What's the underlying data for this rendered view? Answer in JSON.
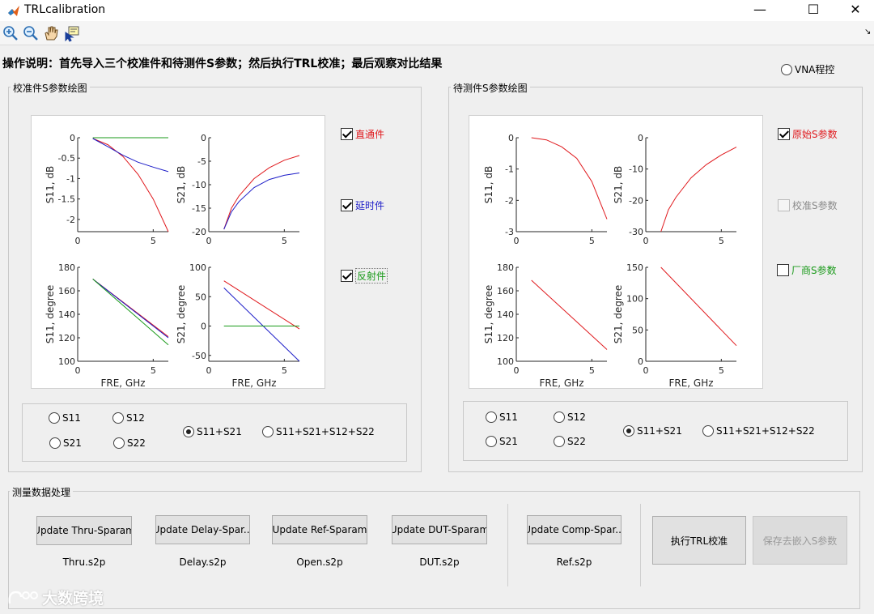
{
  "window": {
    "title": "TRLcalibration",
    "minimize": "—",
    "maximize": "☐",
    "close": "✕"
  },
  "toolbar": {
    "tools": [
      "zoom-in-icon",
      "zoom-out-icon",
      "pan-hand-icon",
      "data-cursor-icon"
    ]
  },
  "instructions": "操作说明：首先导入三个校准件和待测件S参数；然后执行TRL校准；最后观察对比结果",
  "vna": {
    "label": "VNA程控",
    "selected": false
  },
  "left_panel": {
    "title": "校准件S参数绘图",
    "checkboxes": [
      {
        "label": "直通件",
        "checked": true,
        "color": "#e0191d"
      },
      {
        "label": "延时件",
        "checked": true,
        "color": "#1c1cc8"
      },
      {
        "label": "反射件",
        "checked": true,
        "color": "#1a9a1a"
      }
    ],
    "radios": [
      {
        "label": "S11",
        "selected": false
      },
      {
        "label": "S12",
        "selected": false
      },
      {
        "label": "S21",
        "selected": false
      },
      {
        "label": "S22",
        "selected": false
      },
      {
        "label": "S11+S21",
        "selected": true
      },
      {
        "label": "S11+S21+S12+S22",
        "selected": false
      }
    ]
  },
  "right_panel": {
    "title": "待测件S参数绘图",
    "checkboxes": [
      {
        "label": "原始S参数",
        "checked": true,
        "disabled": false,
        "color": "#e0191d"
      },
      {
        "label": "校准S参数",
        "checked": false,
        "disabled": true,
        "color": "#8a8a8a"
      },
      {
        "label": "厂商S参数",
        "checked": false,
        "disabled": false,
        "color": "#1a9a1a"
      }
    ],
    "radios": [
      {
        "label": "S11",
        "selected": false
      },
      {
        "label": "S12",
        "selected": false
      },
      {
        "label": "S21",
        "selected": false
      },
      {
        "label": "S22",
        "selected": false
      },
      {
        "label": "S11+S21",
        "selected": true
      },
      {
        "label": "S11+S21+S12+S22",
        "selected": false
      }
    ]
  },
  "measurement": {
    "title": "测量数据处理",
    "buttons": [
      {
        "label": "Update Thru-Sparam",
        "file": "Thru.s2p"
      },
      {
        "label": "Update Delay-Spar...",
        "file": "Delay.s2p"
      },
      {
        "label": "Update Ref-Sparam",
        "file": "Open.s2p"
      },
      {
        "label": "Update DUT-Sparam",
        "file": "DUT.s2p"
      },
      {
        "label": "Update Comp-Spar...",
        "file": "Ref.s2p"
      }
    ],
    "run_button": "执行TRL校准",
    "save_button": "保存去嵌入S参数"
  },
  "watermark": "大数跨境",
  "chart_data": [
    {
      "type": "line",
      "id": "cal_s11_db",
      "xlabel": "",
      "ylabel": "S11, dB",
      "xlim": [
        0,
        6
      ],
      "ylim": [
        -2.3,
        0
      ],
      "xticks": [
        0,
        5
      ],
      "yticks": [
        0,
        -0.5,
        -1,
        -1.5,
        -2
      ],
      "series": [
        {
          "color": "#e0191d",
          "x": [
            1,
            2,
            3,
            4,
            5,
            6
          ],
          "y": [
            -0.02,
            -0.17,
            -0.46,
            -0.9,
            -1.5,
            -2.3
          ]
        },
        {
          "color": "#1c1cc8",
          "x": [
            1,
            2,
            3,
            4,
            5,
            6
          ],
          "y": [
            -0.02,
            -0.22,
            -0.43,
            -0.6,
            -0.72,
            -0.83
          ]
        },
        {
          "color": "#1a9a1a",
          "x": [
            1,
            6
          ],
          "y": [
            0,
            0
          ]
        }
      ]
    },
    {
      "type": "line",
      "id": "cal_s21_db",
      "xlabel": "",
      "ylabel": "S21, dB",
      "xlim": [
        0,
        6
      ],
      "ylim": [
        -20,
        0
      ],
      "xticks": [
        0,
        5
      ],
      "yticks": [
        0,
        -5,
        -10,
        -15,
        -20
      ],
      "series": [
        {
          "color": "#e0191d",
          "x": [
            1,
            1.5,
            2,
            3,
            4,
            5,
            6
          ],
          "y": [
            -19.5,
            -15,
            -12.4,
            -8.7,
            -6.4,
            -4.8,
            -3.8
          ]
        },
        {
          "color": "#1c1cc8",
          "x": [
            1,
            1.5,
            2,
            3,
            4,
            5,
            6
          ],
          "y": [
            -19.5,
            -15.8,
            -13.6,
            -10.6,
            -8.9,
            -8,
            -7.5
          ]
        }
      ]
    },
    {
      "type": "line",
      "id": "cal_s11_deg",
      "xlabel": "FRE, GHz",
      "ylabel": "S11, degree",
      "xlim": [
        0,
        6
      ],
      "ylim": [
        100,
        180
      ],
      "xticks": [
        0,
        5
      ],
      "yticks": [
        100,
        120,
        140,
        160,
        180
      ],
      "series": [
        {
          "color": "#e0191d",
          "x": [
            1,
            6
          ],
          "y": [
            170,
            121
          ]
        },
        {
          "color": "#1c1cc8",
          "x": [
            1,
            6
          ],
          "y": [
            170,
            120
          ]
        },
        {
          "color": "#1a9a1a",
          "x": [
            1,
            6
          ],
          "y": [
            170,
            114
          ]
        }
      ]
    },
    {
      "type": "line",
      "id": "cal_s21_deg",
      "xlabel": "FRE, GHz",
      "ylabel": "S21, degree",
      "xlim": [
        0,
        6
      ],
      "ylim": [
        -60,
        100
      ],
      "xticks": [
        0,
        5
      ],
      "yticks": [
        100,
        50,
        0,
        -50
      ],
      "series": [
        {
          "color": "#e0191d",
          "x": [
            1,
            6
          ],
          "y": [
            77,
            -5
          ]
        },
        {
          "color": "#1c1cc8",
          "x": [
            1,
            6
          ],
          "y": [
            65,
            -60
          ]
        },
        {
          "color": "#1a9a1a",
          "x": [
            1,
            6
          ],
          "y": [
            0,
            0
          ]
        }
      ]
    },
    {
      "type": "line",
      "id": "dut_s11_db",
      "xlabel": "",
      "ylabel": "S11, dB",
      "xlim": [
        0,
        6
      ],
      "ylim": [
        -3,
        0
      ],
      "xticks": [
        0,
        5
      ],
      "yticks": [
        0,
        -1,
        -2,
        -3
      ],
      "series": [
        {
          "color": "#e0191d",
          "x": [
            1,
            2,
            3,
            4,
            5,
            6
          ],
          "y": [
            0,
            -0.07,
            -0.29,
            -0.66,
            -1.4,
            -2.6
          ]
        }
      ]
    },
    {
      "type": "line",
      "id": "dut_s21_db",
      "xlabel": "",
      "ylabel": "S21, dB",
      "xlim": [
        0,
        6
      ],
      "ylim": [
        -30,
        0
      ],
      "xticks": [
        0,
        5
      ],
      "yticks": [
        0,
        -10,
        -20,
        -30
      ],
      "series": [
        {
          "color": "#e0191d",
          "x": [
            1,
            1.5,
            2,
            3,
            4,
            5,
            6
          ],
          "y": [
            -30,
            -23,
            -19,
            -12.8,
            -8.6,
            -5.5,
            -3
          ]
        }
      ]
    },
    {
      "type": "line",
      "id": "dut_s11_deg",
      "xlabel": "FRE, GHz",
      "ylabel": "S11, degree",
      "xlim": [
        0,
        6
      ],
      "ylim": [
        100,
        180
      ],
      "xticks": [
        0,
        5
      ],
      "yticks": [
        100,
        120,
        140,
        160,
        180
      ],
      "series": [
        {
          "color": "#e0191d",
          "x": [
            1,
            6
          ],
          "y": [
            169,
            110
          ]
        }
      ]
    },
    {
      "type": "line",
      "id": "dut_s21_deg",
      "xlabel": "FRE, GHz",
      "ylabel": "S21, degree",
      "xlim": [
        0,
        6
      ],
      "ylim": [
        0,
        150
      ],
      "xticks": [
        0,
        5
      ],
      "yticks": [
        0,
        50,
        100,
        150
      ],
      "series": [
        {
          "color": "#e0191d",
          "x": [
            1,
            6
          ],
          "y": [
            150,
            25
          ]
        }
      ]
    }
  ]
}
